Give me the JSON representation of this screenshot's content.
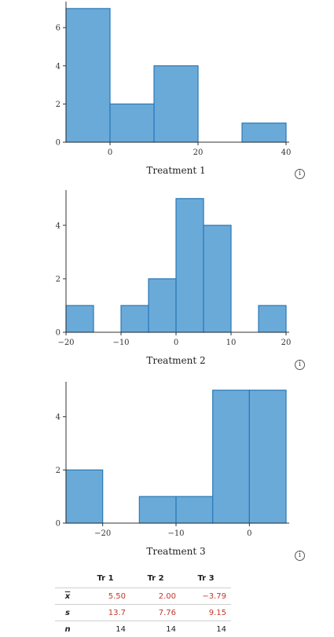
{
  "colors": {
    "bar_fill": "#6aaad9",
    "bar_stroke": "#2979b8",
    "value_red": "#c0392b"
  },
  "chart_data": [
    {
      "type": "bar",
      "xlabel": "Treatment 1",
      "bins": [
        [
          -10,
          0
        ],
        [
          0,
          10
        ],
        [
          10,
          20
        ],
        [
          30,
          40
        ]
      ],
      "values": [
        7,
        2,
        4,
        1
      ],
      "xlim": [
        -10,
        40
      ],
      "ylim": [
        0,
        7.2
      ],
      "xticks": [
        0,
        20,
        40
      ],
      "yticks": [
        0,
        2,
        4,
        6
      ]
    },
    {
      "type": "bar",
      "xlabel": "Treatment 2",
      "bins": [
        [
          -20,
          -15
        ],
        [
          -10,
          -5
        ],
        [
          -5,
          0
        ],
        [
          0,
          5
        ],
        [
          5,
          10
        ],
        [
          15,
          20
        ]
      ],
      "values": [
        1,
        1,
        2,
        5,
        4,
        1
      ],
      "xlim": [
        -20,
        20
      ],
      "ylim": [
        0,
        5.2
      ],
      "xticks": [
        -20,
        -10,
        0,
        10,
        20
      ],
      "yticks": [
        0,
        2,
        4
      ]
    },
    {
      "type": "bar",
      "xlabel": "Treatment 3",
      "bins": [
        [
          -25,
          -20
        ],
        [
          -15,
          -10
        ],
        [
          -10,
          -5
        ],
        [
          -5,
          0
        ],
        [
          0,
          5
        ]
      ],
      "values": [
        2,
        1,
        1,
        5,
        5
      ],
      "xlim": [
        -25,
        5
      ],
      "ylim": [
        0,
        5.2
      ],
      "xticks": [
        -20,
        -10,
        0
      ],
      "yticks": [
        0,
        2,
        4
      ]
    }
  ],
  "info_icon": "info-icon",
  "stats": {
    "headers": [
      "Tr 1",
      "Tr 2",
      "Tr 3"
    ],
    "mean_label": "x",
    "sd_label": "s",
    "n_label": "n",
    "mean": [
      "5.50",
      "2.00",
      "−3.79"
    ],
    "sd": [
      "13.7",
      "7.76",
      "9.15"
    ],
    "n": [
      "14",
      "14",
      "14"
    ]
  }
}
